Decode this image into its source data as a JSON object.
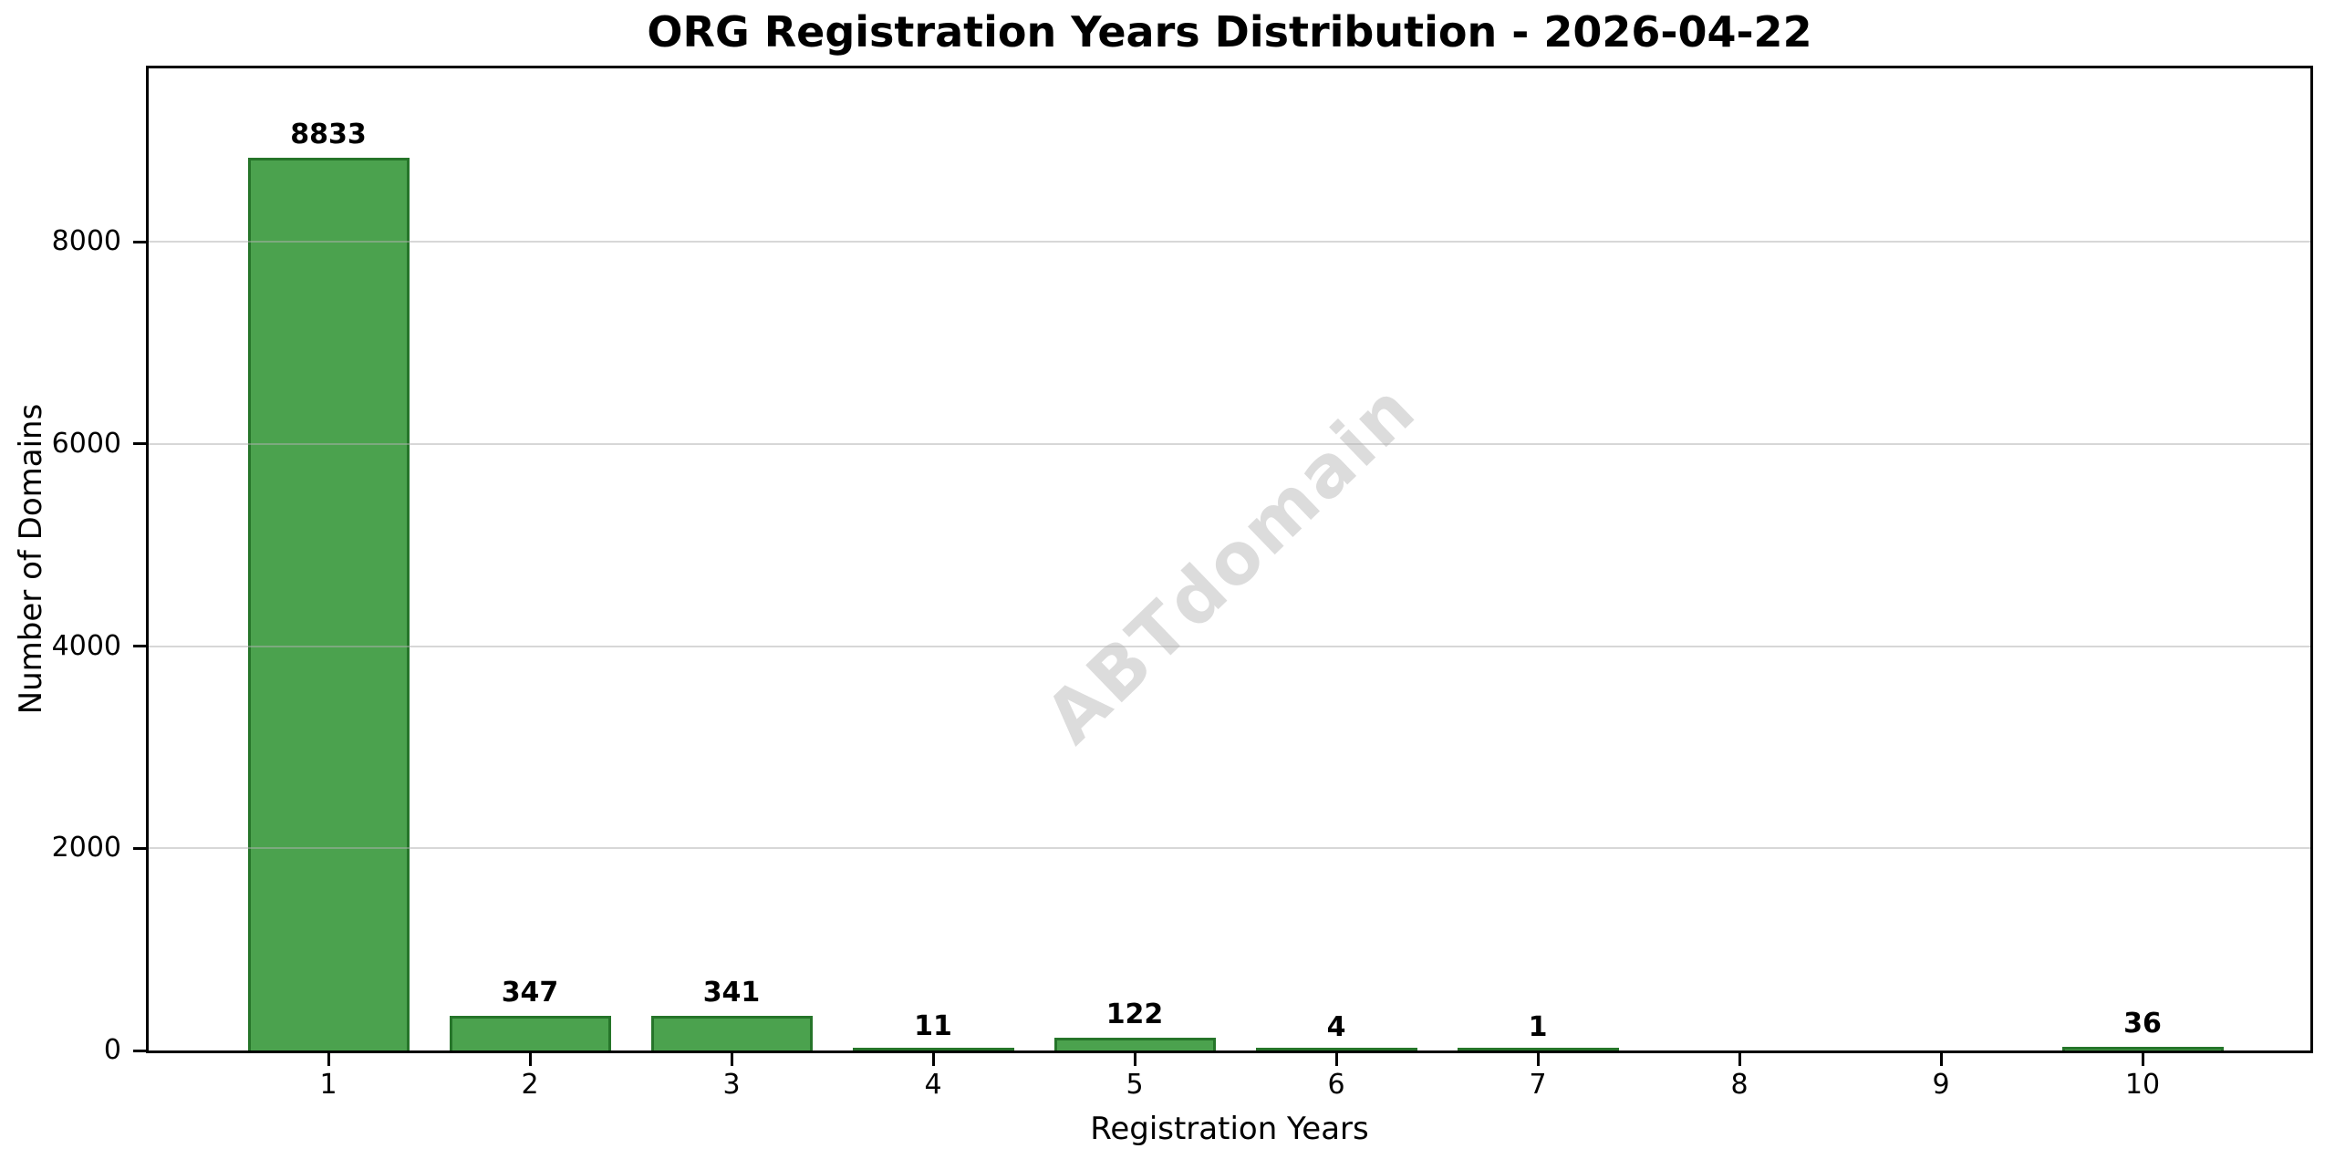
{
  "page": {
    "background": "#ffffff"
  },
  "chart_data": {
    "type": "bar",
    "title": "ORG Registration Years Distribution - 2026-04-22",
    "xlabel": "Registration Years",
    "ylabel": "Number of Domains",
    "categories": [
      "1",
      "2",
      "3",
      "4",
      "5",
      "6",
      "7",
      "8",
      "9",
      "10"
    ],
    "values": [
      8833,
      347,
      341,
      11,
      122,
      4,
      1,
      0,
      0,
      36
    ],
    "bar_value_labels": [
      "8833",
      "347",
      "341",
      "11",
      "122",
      "4",
      "1",
      "",
      "",
      "36"
    ],
    "yticks": [
      0,
      2000,
      4000,
      6000,
      8000
    ],
    "ytick_labels": [
      "0",
      "2000",
      "4000",
      "6000",
      "8000"
    ],
    "ylim": [
      0,
      9716
    ],
    "grid": "horizontal-y",
    "legend": "none",
    "bar_color": "#4BA24E",
    "bar_edge_color": "#26752A",
    "axis_color": "#000000",
    "grid_color": "#b0b0b0",
    "watermark": "ABTdomain",
    "watermark_color": "#DCDCDC"
  }
}
